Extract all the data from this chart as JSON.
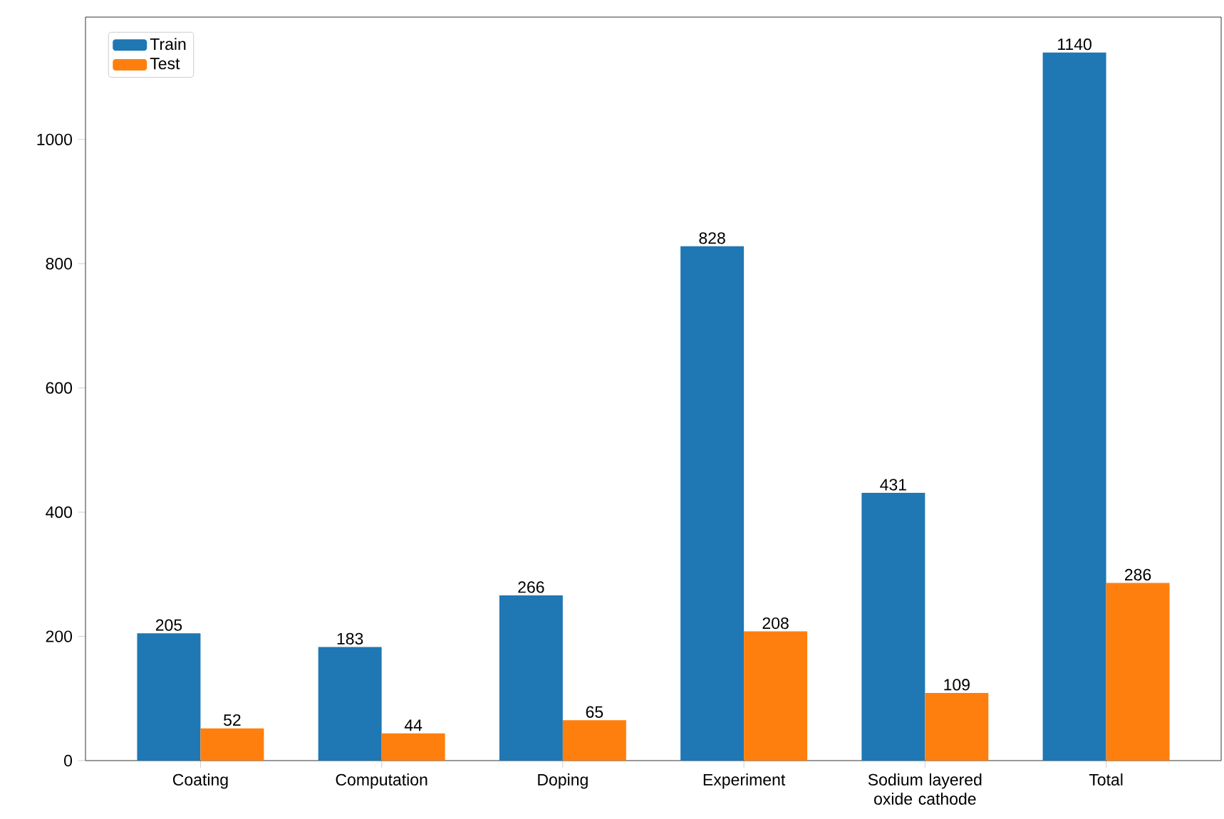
{
  "chart_data": {
    "type": "bar",
    "categories": [
      "Coating",
      "Computation",
      "Doping",
      "Experiment",
      "Sodium layered oxide cathode",
      "Total"
    ],
    "series": [
      {
        "name": "Train",
        "color": "#1f77b4",
        "values": [
          205,
          183,
          266,
          828,
          431,
          1140
        ]
      },
      {
        "name": "Test",
        "color": "#ff7f0e",
        "values": [
          52,
          44,
          65,
          208,
          109,
          286
        ]
      }
    ],
    "ylim": [
      0,
      1197
    ],
    "yticks": [
      0,
      200,
      400,
      600,
      800,
      1000
    ],
    "data_labels": true,
    "legend": "top left"
  }
}
